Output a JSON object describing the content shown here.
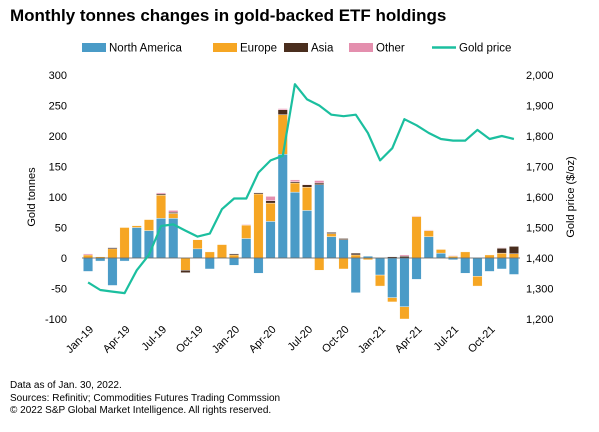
{
  "chart_data": {
    "type": "bar",
    "title": "Monthly tonnes changes in gold-backed ETF holdings",
    "ylabel": "Gold tonnes",
    "y2label": "Gold price ($/oz)",
    "ylim": [
      -100,
      300
    ],
    "y2lim": [
      1200,
      2000
    ],
    "yticks": [
      "300",
      "250",
      "200",
      "150",
      "100",
      "50",
      "0",
      "-50",
      "-100"
    ],
    "y2ticks": [
      "2,000",
      "1,900",
      "1,800",
      "1,700",
      "1,600",
      "1,500",
      "1,400",
      "1,300",
      "1,200"
    ],
    "xtick_labels": [
      "Jan-19",
      "Apr-19",
      "Jul-19",
      "Oct-19",
      "Jan-20",
      "Apr-20",
      "Jul-20",
      "Oct-20",
      "Jan-21",
      "Apr-21",
      "Jul-21",
      "Oct-21"
    ],
    "stacked": true,
    "legend_position": "top",
    "categories": [
      "Jan-19",
      "Feb-19",
      "Mar-19",
      "Apr-19",
      "May-19",
      "Jun-19",
      "Jul-19",
      "Aug-19",
      "Sep-19",
      "Oct-19",
      "Nov-19",
      "Dec-19",
      "Jan-20",
      "Feb-20",
      "Mar-20",
      "Apr-20",
      "May-20",
      "Jun-20",
      "Jul-20",
      "Aug-20",
      "Sep-20",
      "Oct-20",
      "Nov-20",
      "Dec-20",
      "Jan-21",
      "Feb-21",
      "Mar-21",
      "Apr-21",
      "May-21",
      "Jun-21",
      "Jul-21",
      "Aug-21",
      "Sep-21",
      "Oct-21",
      "Nov-21",
      "Dec-21"
    ],
    "series": [
      {
        "name": "North America",
        "color": "#4a9bc7",
        "type": "bar",
        "values": [
          -22,
          -5,
          -45,
          -5,
          50,
          45,
          65,
          65,
          0,
          15,
          -18,
          0,
          -12,
          32,
          -25,
          60,
          170,
          108,
          78,
          120,
          35,
          30,
          -57,
          3,
          -28,
          -65,
          -80,
          -35,
          35,
          8,
          -3,
          -25,
          -30,
          -22,
          -18,
          -27
        ]
      },
      {
        "name": "Europe",
        "color": "#f6a623",
        "type": "bar",
        "values": [
          5,
          2,
          15,
          50,
          3,
          18,
          38,
          8,
          -20,
          15,
          10,
          22,
          5,
          22,
          105,
          30,
          65,
          15,
          38,
          -20,
          5,
          -18,
          5,
          -3,
          -18,
          -7,
          -20,
          68,
          10,
          6,
          3,
          10,
          -16,
          5,
          8,
          7
        ]
      },
      {
        "name": "Asia",
        "color": "#4a2e1e",
        "type": "bar",
        "values": [
          0,
          0,
          2,
          0,
          0,
          0,
          2,
          2,
          -4,
          0,
          0,
          0,
          2,
          0,
          2,
          4,
          8,
          2,
          4,
          3,
          2,
          2,
          3,
          0,
          0,
          2,
          3,
          0,
          0,
          0,
          0,
          0,
          0,
          0,
          8,
          12
        ]
      },
      {
        "name": "Other",
        "color": "#e48fae",
        "type": "bar",
        "values": [
          2,
          0,
          0,
          0,
          0,
          0,
          2,
          3,
          0,
          0,
          0,
          0,
          0,
          1,
          0,
          7,
          2,
          3,
          1,
          4,
          0,
          0,
          0,
          0,
          0,
          0,
          2,
          1,
          1,
          0,
          1,
          0,
          0,
          0,
          1,
          0
        ]
      },
      {
        "name": "Gold price",
        "color": "#1bbf9f",
        "type": "line",
        "axis": "right",
        "values": [
          1320,
          1295,
          1290,
          1285,
          1360,
          1410,
          1505,
          1510,
          1490,
          1470,
          1480,
          1560,
          1595,
          1595,
          1680,
          1720,
          1735,
          1970,
          1920,
          1900,
          1870,
          1865,
          1870,
          1810,
          1720,
          1760,
          1855,
          1835,
          1810,
          1790,
          1785,
          1785,
          1820,
          1790,
          1800,
          1790
        ]
      }
    ]
  },
  "legend": [
    {
      "label": "North America",
      "color": "#4a9bc7",
      "kind": "box"
    },
    {
      "label": "Europe",
      "color": "#f6a623",
      "kind": "box"
    },
    {
      "label": "Asia",
      "color": "#4a2e1e",
      "kind": "box"
    },
    {
      "label": "Other",
      "color": "#e48fae",
      "kind": "box"
    },
    {
      "label": "Gold price",
      "color": "#1bbf9f",
      "kind": "line"
    }
  ],
  "footnotes": {
    "line1": "Data as of Jan. 30, 2022.",
    "line2": "Sources: Refinitiv; Commodities Futures Trading Commssion",
    "line3": "© 2022 S&P Global Market Intelligence. All rights reserved."
  }
}
